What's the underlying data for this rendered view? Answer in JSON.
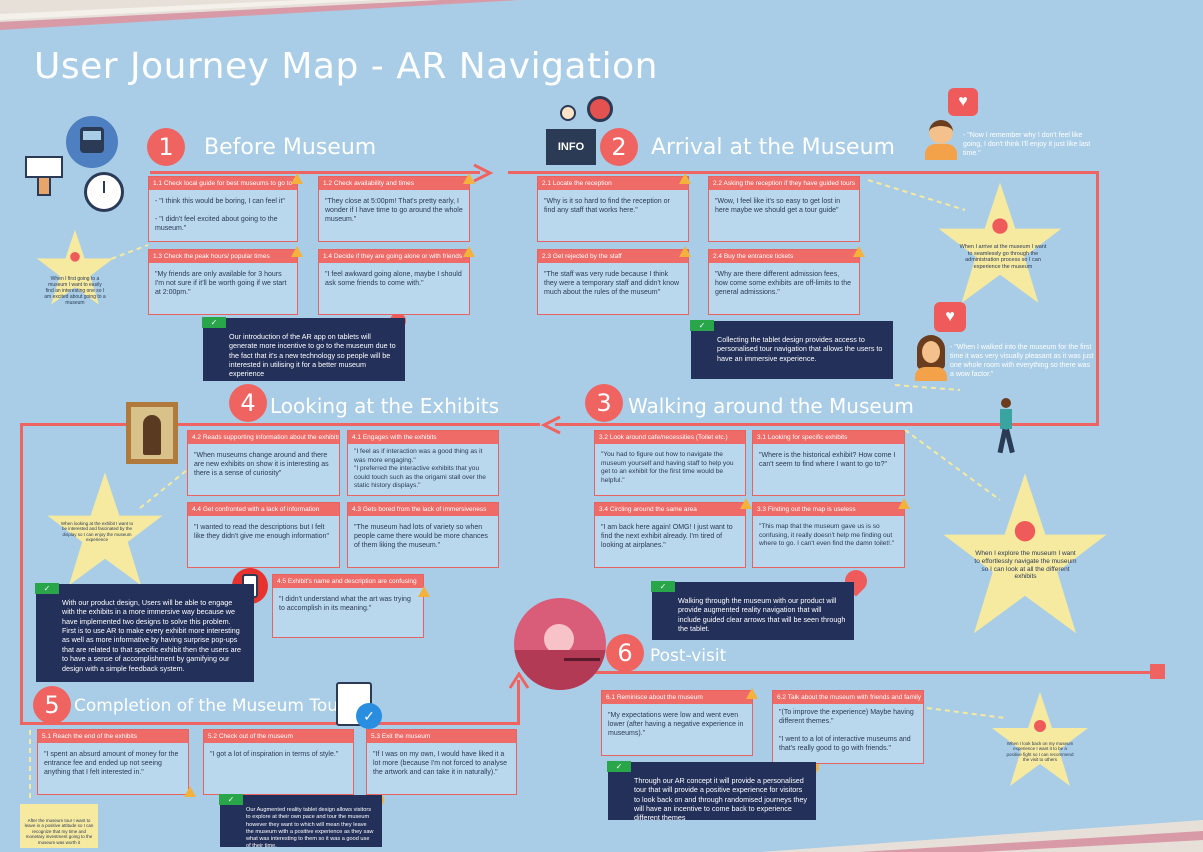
{
  "title": "User Journey Map - AR Navigation",
  "colors": {
    "background": "#a9cde6",
    "accent": "#ef6461",
    "dark_box": "#23305a",
    "star": "#f6e9a0"
  },
  "stages": [
    {
      "num": "1",
      "label": "Before Museum"
    },
    {
      "num": "2",
      "label": "Arrival at the Museum"
    },
    {
      "num": "3",
      "label": "Walking around the Museum"
    },
    {
      "num": "4",
      "label": "Looking at the Exhibits"
    },
    {
      "num": "5",
      "label": "Completion of the Museum Tour"
    },
    {
      "num": "6",
      "label": "Post-visit"
    }
  ],
  "cards": {
    "c11": {
      "head": "1.1 Check local guide for best museums to go to",
      "body": "- \"I think this would be boring, I can feel it\"\n\n- \"I didn't feel excited about going to the museum.\""
    },
    "c12": {
      "head": "1.2 Check availability and times",
      "body": "\"They close at 5:00pm! That's pretty early, I wonder if I have time to go around the whole museum.\""
    },
    "c13": {
      "head": "1.3 Check the peak hours/ popular times",
      "body": "\"My friends are only available for 3 hours I'm not sure if it'll be worth going if we start at 2:00pm.\""
    },
    "c14": {
      "head": "1.4 Decide if they are going alone or with friends",
      "body": "\"I feel awkward going alone, maybe I should ask some friends to come with.\""
    },
    "c21": {
      "head": "2.1 Locate the reception",
      "body": "\"Why is it so hard to find the reception or find any staff that works here.\""
    },
    "c22": {
      "head": "2.2 Asking the reception if they have guided tours",
      "body": "\"Wow, I feel like it's so easy to get lost in here maybe we should get a tour guide\""
    },
    "c23": {
      "head": "2.3 Get rejected by the staff",
      "body": "\"The staff was very rude because I think they were a temporary staff and didn't know much about the rules of the museum\""
    },
    "c24": {
      "head": "2.4 Buy the entrance tickets",
      "body": "\"Why are there different admission fees, how come some exhibits are off-limits to the general admissions.\""
    },
    "c31": {
      "head": "3.1 Looking for specific exhibits",
      "body": "\"Where is the historical exhibit? How come I can't seem to find where I want to go to?\""
    },
    "c32": {
      "head": "3.2 Look around cafe/necessities (Toilet etc.)",
      "body": "\"You had to figure out how to navigate the museum yourself and having staff to help you get to an exhibit for the first time would be helpful.\""
    },
    "c33": {
      "head": "3.3 Finding out the map is useless",
      "body": "\"This map that the museum gave us is so confusing, it really doesn't help me finding out where to go. I can't even find the damn toilet!.\""
    },
    "c34": {
      "head": "3.4 Circling around the same area",
      "body": "\"I am back here again! OMG! I just want to find the next exhibit already. I'm tired of looking at airplanes.\""
    },
    "c41": {
      "head": "4.1 Engages with the exhibits",
      "body": "\"I feel as if interaction was a good thing as it was more engaging.\"\n\"I preferred the interactive exhibits that you could touch such as the origami stall over the static history displays.\""
    },
    "c42": {
      "head": "4.2 Reads supporting information about the exhibits",
      "body": "\"When museums change around and there are new exhibits on show it is interesting as there is a sense of curiosity\""
    },
    "c43": {
      "head": "4.3 Gets bored from the lack of immersiveness",
      "body": "\"The museum had lots of variety so when people came there would be more chances of them liking the museum.\""
    },
    "c44": {
      "head": "4.4 Get confronted with a lack of information",
      "body": "\"I wanted to read the descriptions but I felt like they didn't give me enough information\""
    },
    "c45": {
      "head": "4.5 Exhibit's name and description are confusing",
      "body": "\"I didn't understand what the art was trying to accomplish in its meaning.\""
    },
    "c51": {
      "head": "5.1 Reach the end of the exhibits",
      "body": "\"I spent an absurd amount of money for the entrance fee and ended up not seeing anything that I felt interested in.\""
    },
    "c52": {
      "head": "5.2 Check out of the museum",
      "body": "\"I got a lot of inspiration in terms of style.\""
    },
    "c53": {
      "head": "5.3 Exit the museum",
      "body": "\"If I was on my own, I would have liked it a lot more (because I'm not forced to analyse the artwork and can take it in naturally).\""
    },
    "c61": {
      "head": "6.1 Reminisce about the museum",
      "body": "\"My expectations were low and went even lower (after having a negative experience in museums).\""
    },
    "c62": {
      "head": "6.2 Talk about the museum with friends and family",
      "body": "\"(To improve the experience) Maybe having different themes.\"\n\n\"I went to a lot of interactive museums and that's really good to go with friends.\""
    }
  },
  "solutions": {
    "s1": "Our introduction of the AR app on tablets will generate more incentive to go to the museum due to the fact that it's a new technology so people will be interested in utilising it for a better museum experience",
    "s2": "Collecting the tablet design provides access to personalised tour navigation that allows the users to have an immersive experience.",
    "s3": "Walking through the museum with our product will provide augmented reality navigation that will include guided clear arrows that will be seen through the tablet.",
    "s4": "With our product design, Users will be able to engage with the exhibits in a more immersive way because we have implemented two designs to solve this problem. First is to use AR to make every exhibit more interesting as well as more informative by having surprise pop-ups that are related to that specific exhibit then the users are to have a sense of accomplishment by gamifying our design with a simple feedback system.",
    "s5": "Our Augmented reality tablet design allows visitors to explore at their own pace and tour the museum however they want to which will mean they leave the museum with a positive experience as they saw what was interesting to them so it was a good use of their time.",
    "s6": "Through our AR concept it will provide a personalised tour that will provide a positive experience for visitors to look back on and through randomised journeys they will have an incentive to come back to experience different themes"
  },
  "stars": {
    "st1": "When I first going to a museum I want to easily find an interesting one so I am excited about going to a museum",
    "st2": "When I arrive at the museum I want to seamlessly go through the administration process so I can experience the museum",
    "st3": "When I explore the museum I want to effortlessly navigate the museum so I can look at all the different exhibits",
    "st4": "When looking at the exhibit I want to be interested and fascinated by the display so I can enjoy the museum experience",
    "st5": "When I look back on my museum experience I want it to be a positive fight so I can recommend the visit to others",
    "st6": "After the museum tour I want to leave in a positive attitude so I can recognize that my time and monetary investment going to the museum was worth it"
  },
  "quotes": {
    "q1": "- \"Now I remember why I don't feel like going, I don't think I'll enjoy it just like last time.\"",
    "q2": "- \"When I walked into the museum for the first time it was very visually pleasant as it was just one whole room with everything so there was a wow factor.\""
  },
  "icons": {
    "info_label": "INFO"
  }
}
